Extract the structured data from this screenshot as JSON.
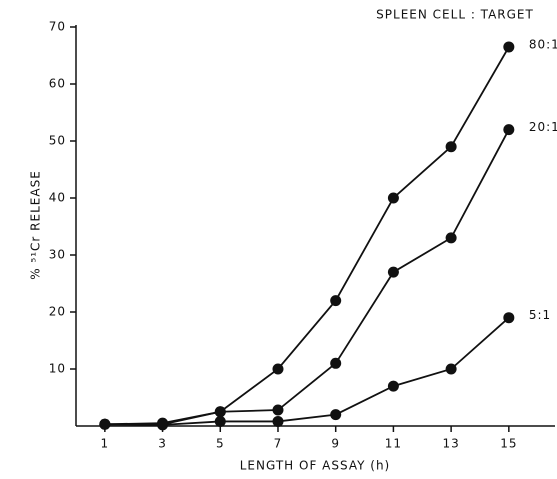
{
  "chart_data": {
    "type": "line",
    "legend_title": "SPLEEN CELL : TARGET",
    "x_label": "LENGTH OF ASSAY (h)",
    "y_label": "% ⁵¹Cr RELEASE",
    "x": [
      1,
      3,
      5,
      7,
      9,
      11,
      13,
      15
    ],
    "series": [
      {
        "name": "80:1",
        "color": "#111111",
        "values": [
          0.3,
          0.5,
          2.5,
          10,
          22,
          40,
          49,
          66.5
        ]
      },
      {
        "name": "20:1",
        "color": "#111111",
        "values": [
          0.3,
          0.3,
          2.5,
          2.8,
          11,
          27,
          33,
          52
        ]
      },
      {
        "name": "5:1",
        "color": "#111111",
        "values": [
          0.3,
          0.2,
          0.8,
          0.8,
          2,
          7,
          10,
          19
        ]
      }
    ],
    "xlim": [
      0,
      16.6
    ],
    "xticks": [
      1,
      3,
      5,
      7,
      9,
      11,
      13,
      15
    ],
    "ylim": [
      0,
      70
    ],
    "yticks": [
      10,
      20,
      30,
      40,
      50,
      60,
      70
    ],
    "grid": false
  }
}
